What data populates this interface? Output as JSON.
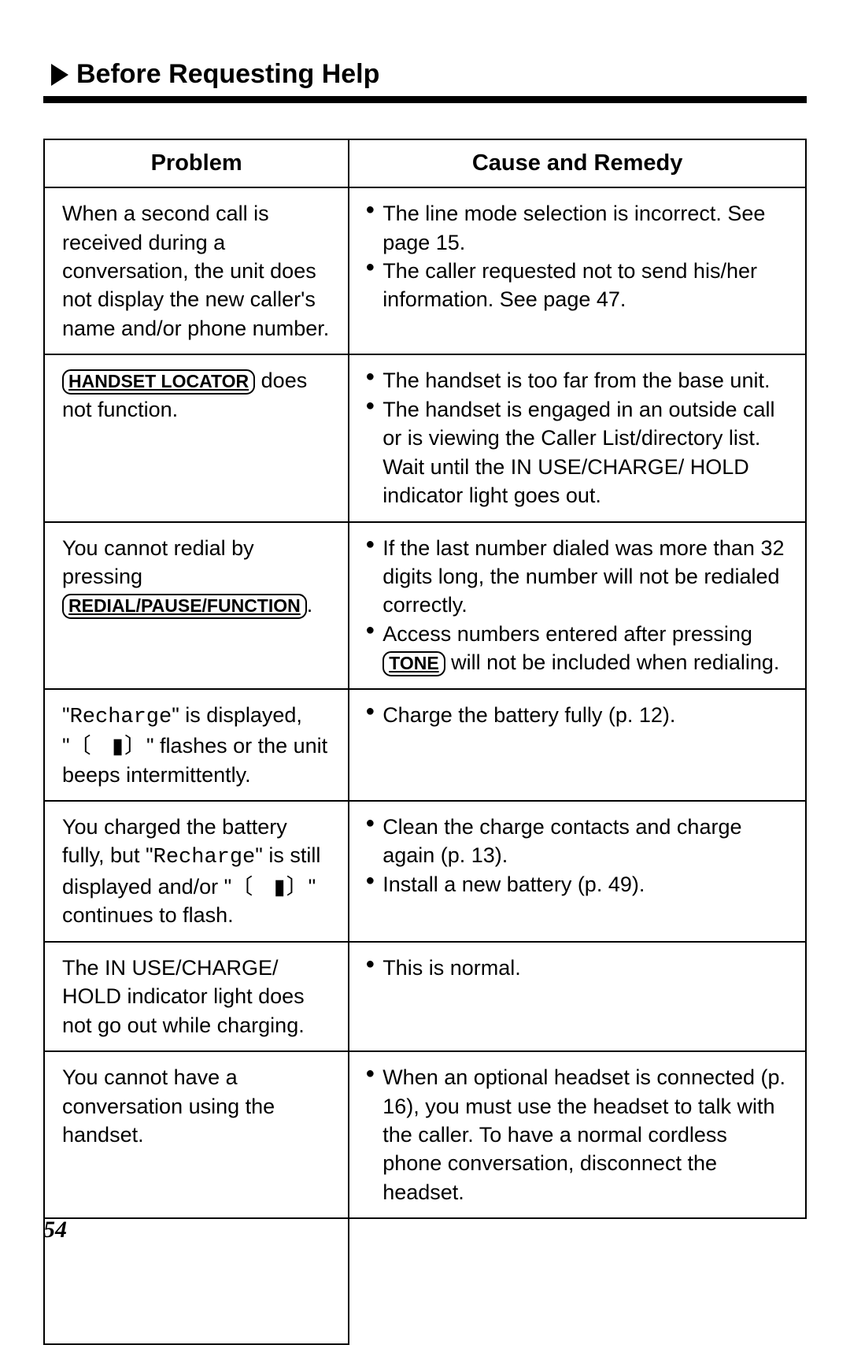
{
  "header": {
    "title": "Before Requesting Help"
  },
  "table": {
    "columns": {
      "problem": "Problem",
      "remedy": "Cause and Remedy"
    },
    "rows": [
      {
        "problem_html": "When a second call is received during a conversation, the unit does not display the new caller's name and/or phone number.",
        "remedy_items": [
          "The line mode selection is incorrect. See page 15.",
          "The caller requested not to send his/her information. See page 47."
        ]
      },
      {
        "problem_html": "<span class=\"key-label\">HANDSET LOCATOR</span> does not function.",
        "remedy_items": [
          "The handset is too far from the base unit.",
          "The handset is engaged in an outside call or is viewing the Caller List/directory list. Wait until the IN USE/CHARGE/ HOLD indicator light goes out."
        ]
      },
      {
        "problem_html": "You cannot redial by pressing <span class=\"key-label\">REDIAL/PAUSE/FUNCTION</span>.",
        "remedy_items": [
          "If the last number dialed was more than 32 digits long, the number will not be redialed correctly.",
          "Access numbers entered after pressing <span class=\"key-label\">TONE</span> will not be included when redialing."
        ]
      },
      {
        "problem_html": "\"<span class=\"mono\">Recharge</span>\" is displayed, \"<span class=\"battery-flash\">〔&nbsp;&nbsp;&nbsp;▮〕</span>\" flashes or the unit beeps intermittently.",
        "remedy_items": [
          "Charge the battery fully (p. 12)."
        ]
      },
      {
        "problem_html": "You charged the battery fully, but \"<span class=\"mono\">Recharge</span>\" is still displayed and/or \"<span class=\"battery-flash\">〔&nbsp;&nbsp;&nbsp;▮〕</span>\" continues to flash.",
        "remedy_items": [
          "Clean the charge contacts and charge again (p. 13).",
          "Install a new battery (p. 49)."
        ]
      },
      {
        "problem_html": "The IN USE/CHARGE/ HOLD indicator light does not go out while charging.",
        "remedy_items": [
          "This is normal."
        ]
      },
      {
        "problem_html": "You cannot have a conversation using the handset.",
        "remedy_items": [
          "When an optional headset is connected (p. 16), you must use the headset to talk with the caller. To have a normal cordless phone conversation, disconnect the headset."
        ]
      }
    ]
  },
  "page_number": "54"
}
